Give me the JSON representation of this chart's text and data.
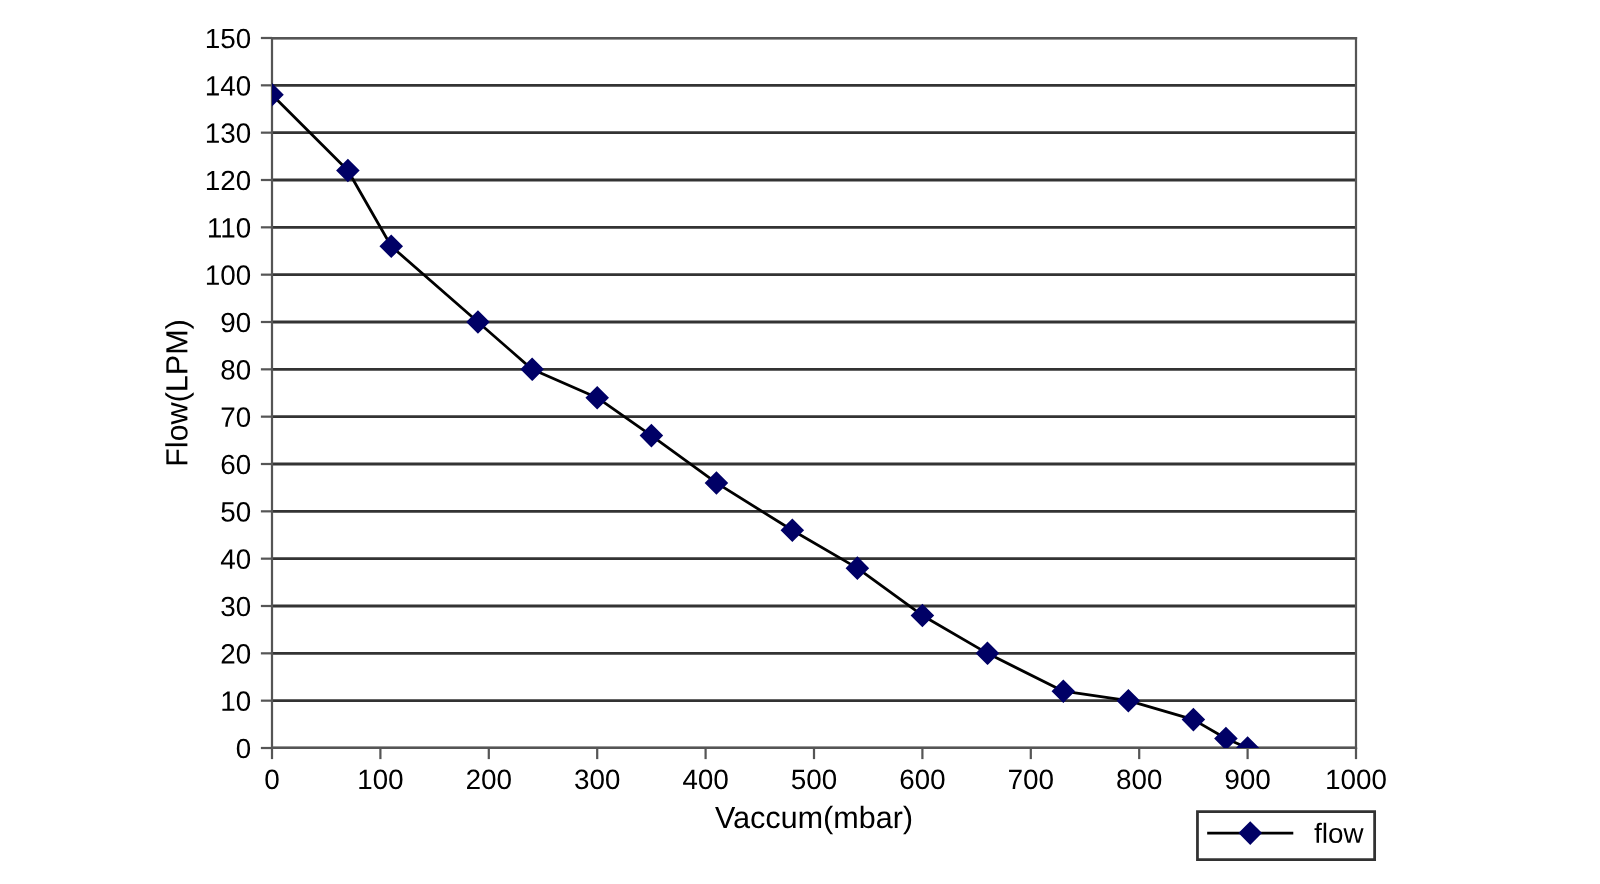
{
  "chart_data": {
    "type": "line",
    "xlabel": "Vaccum(mbar)",
    "ylabel": "Flow(LPM)",
    "series": [
      {
        "name": "flow",
        "color": "#000066",
        "x": [
          0,
          70,
          110,
          190,
          240,
          300,
          350,
          410,
          480,
          540,
          600,
          660,
          730,
          790,
          850,
          880,
          900
        ],
        "values": [
          138,
          122,
          106,
          90,
          80,
          74,
          66,
          56,
          46,
          38,
          28,
          20,
          12,
          10,
          6,
          2,
          0
        ]
      }
    ],
    "xlim": [
      0,
      1000
    ],
    "xticks": [
      0,
      100,
      200,
      300,
      400,
      500,
      600,
      700,
      800,
      900,
      1000
    ],
    "ylim": [
      0,
      150
    ],
    "yticks": [
      0,
      10,
      20,
      30,
      40,
      50,
      60,
      70,
      80,
      90,
      100,
      110,
      120,
      130,
      140,
      150
    ],
    "grid": "y",
    "legend": "bottom right",
    "marker": "diamond",
    "line_style": "solid"
  }
}
